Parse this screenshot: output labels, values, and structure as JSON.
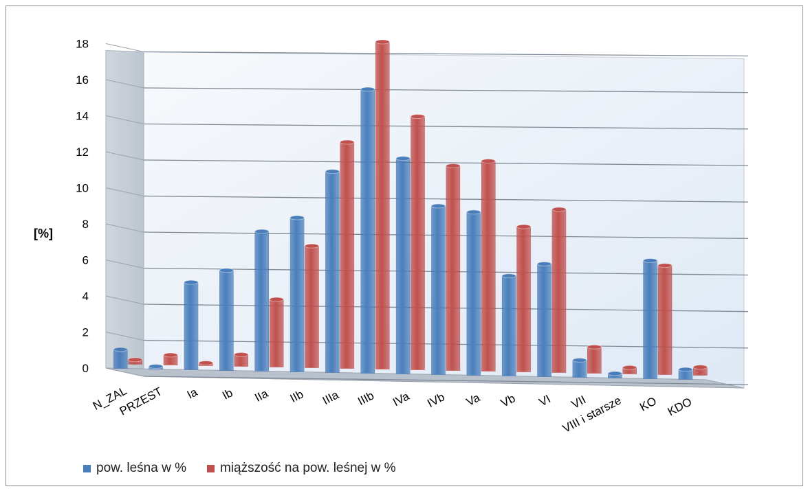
{
  "chart_data": {
    "type": "bar",
    "title": "",
    "xlabel": "",
    "ylabel": "[%]",
    "ylim": [
      0,
      18
    ],
    "yticks": [
      "0",
      "2",
      "4",
      "6",
      "8",
      "10",
      "12",
      "14",
      "16",
      "18"
    ],
    "grid": true,
    "legend_position": "bottom-left",
    "categories": [
      "N_ZAL",
      "PRZEST",
      "Ia",
      "Ib",
      "IIa",
      "IIb",
      "IIIa",
      "IIIb",
      "IVa",
      "IVb",
      "Va",
      "Vb",
      "VI",
      "VII",
      "VIII i starsze",
      "KO",
      "KDO"
    ],
    "series": [
      {
        "name": "pow. leśna w %",
        "color": "#4a7ebb",
        "values": [
          0.9,
          0.0,
          4.7,
          5.4,
          7.6,
          8.4,
          11.0,
          15.6,
          11.8,
          9.2,
          8.9,
          5.4,
          6.1,
          0.8,
          0.1,
          6.4,
          0.4
        ]
      },
      {
        "name": "miąższość na pow. leśnej w %",
        "color": "#c0504d",
        "values": [
          0.1,
          0.4,
          0.0,
          0.5,
          3.6,
          6.6,
          12.4,
          18.0,
          13.9,
          11.2,
          11.5,
          7.9,
          8.9,
          1.3,
          0.2,
          5.9,
          0.3
        ]
      }
    ]
  }
}
